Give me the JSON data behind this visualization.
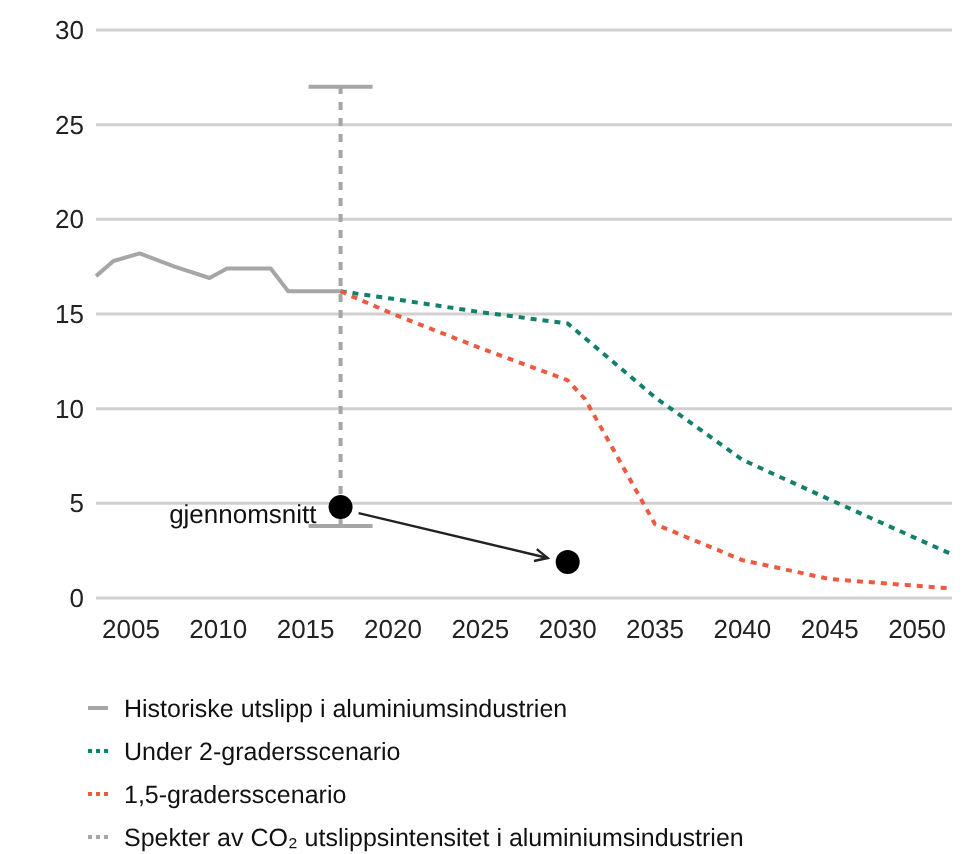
{
  "chart_data": {
    "type": "line",
    "xlim": [
      2003,
      2052
    ],
    "xticks": [
      2005,
      2010,
      2015,
      2020,
      2025,
      2030,
      2035,
      2040,
      2045,
      2050
    ],
    "ylim": [
      0,
      30
    ],
    "yticks": [
      0,
      5,
      10,
      15,
      20,
      25,
      30
    ],
    "grid": "y",
    "legend": "bottom",
    "marker": "none",
    "series": [
      {
        "name": "Historiske utslipp i aluminiumsindustrien",
        "color": "#a6a6a6",
        "line_style": "solid",
        "x": [
          2003,
          2004,
          2005.5,
          2007.5,
          2009.5,
          2010.5,
          2013,
          2014,
          2017
        ],
        "values": [
          17.0,
          17.8,
          18.2,
          17.5,
          16.9,
          17.4,
          17.4,
          16.2,
          16.2
        ]
      },
      {
        "name": "Under 2-gradersscenario",
        "color": "#13806b",
        "line_style": "dotted",
        "x": [
          2017,
          2020,
          2025,
          2030,
          2035,
          2040,
          2045,
          2052
        ],
        "values": [
          16.2,
          15.8,
          15.1,
          14.5,
          10.6,
          7.3,
          5.2,
          2.3
        ]
      },
      {
        "name": "1,5-gradersscenario",
        "color": "#ec5b3f",
        "line_style": "dotted",
        "x": [
          2017,
          2020,
          2025,
          2030,
          2031,
          2035,
          2040,
          2045,
          2052
        ],
        "values": [
          16.2,
          15.0,
          13.2,
          11.5,
          10.5,
          3.9,
          2.0,
          1.0,
          0.5
        ]
      },
      {
        "name": "Spekter av CO₂ utslippsintensitet i aluminiumsindustrien",
        "color": "#a6a6a6",
        "line_style": "dashed",
        "x": [
          2017,
          2017
        ],
        "values": [
          3.8,
          27
        ]
      },
      {
        "type": "scatter",
        "color": "#000000",
        "marker": "circle",
        "x": [
          2017,
          2030
        ],
        "values": [
          4.8,
          1.9
        ]
      }
    ],
    "annotations": [
      {
        "text": "gjennomsnitt",
        "x": 2017,
        "y": 4.8
      }
    ]
  }
}
